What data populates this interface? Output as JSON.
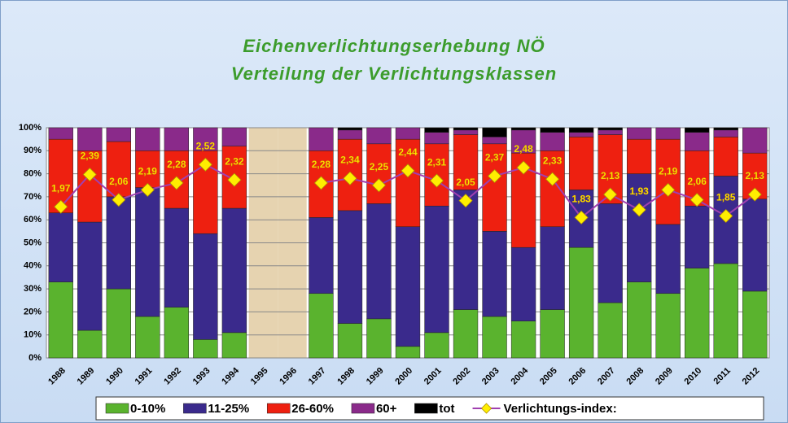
{
  "chart_data": {
    "type": "bar",
    "stacked": true,
    "title": "Eichenverlichtungserhebung NÖ",
    "subtitle": "Verteilung der Verlichtungsklassen",
    "categories": [
      "1988",
      "1989",
      "1990",
      "1991",
      "1992",
      "1993",
      "1994",
      "1995",
      "1996",
      "1997",
      "1998",
      "1999",
      "2000",
      "2001",
      "2002",
      "2003",
      "2004",
      "2005",
      "2006",
      "2007",
      "2008",
      "2009",
      "2010",
      "2011",
      "2012"
    ],
    "ylim": [
      0,
      100
    ],
    "yticks": [
      {
        "value": 0,
        "label": "0%"
      },
      {
        "value": 10,
        "label": "10%"
      },
      {
        "value": 20,
        "label": "20%"
      },
      {
        "value": 30,
        "label": "30%"
      },
      {
        "value": 40,
        "label": "40%"
      },
      {
        "value": 50,
        "label": "50%"
      },
      {
        "value": 60,
        "label": "60%"
      },
      {
        "value": 70,
        "label": "70%"
      },
      {
        "value": 80,
        "label": "80%"
      },
      {
        "value": 90,
        "label": "90%"
      },
      {
        "value": 100,
        "label": "100%"
      }
    ],
    "y2lim": [
      0,
      3
    ],
    "grid": true,
    "legend": "bottom",
    "series": [
      {
        "name": "0-10%",
        "color": "#5ab32e",
        "values": [
          33,
          12,
          30,
          18,
          22,
          8,
          11,
          null,
          null,
          28,
          15,
          17,
          5,
          11,
          21,
          18,
          16,
          21,
          48,
          24,
          33,
          28,
          39,
          41,
          29
        ]
      },
      {
        "name": "11-25%",
        "color": "#3a2a8c",
        "values": [
          30,
          47,
          40,
          56,
          43,
          46,
          54,
          null,
          null,
          33,
          49,
          50,
          52,
          55,
          52,
          37,
          32,
          36,
          25,
          43,
          47,
          30,
          27,
          38,
          40
        ]
      },
      {
        "name": "26-60%",
        "color": "#ee2010",
        "values": [
          32,
          31,
          24,
          16,
          25,
          36,
          27,
          null,
          null,
          29,
          31,
          26,
          38,
          27,
          24,
          38,
          41,
          33,
          23,
          30,
          15,
          37,
          24,
          17,
          20
        ]
      },
      {
        "name": "60+",
        "color": "#8a2a8a",
        "values": [
          5,
          10,
          6,
          10,
          10,
          10,
          8,
          null,
          null,
          10,
          4,
          7,
          5,
          5,
          2,
          3,
          10,
          8,
          2,
          2,
          5,
          5,
          8,
          3,
          11
        ]
      },
      {
        "name": "tot",
        "color": "#000000",
        "values": [
          0,
          0,
          0,
          0,
          0,
          0,
          0,
          null,
          null,
          0,
          1,
          0,
          0,
          2,
          1,
          4,
          1,
          2,
          2,
          1,
          0,
          0,
          2,
          1,
          0
        ]
      },
      {
        "name": "Verlichtungs-index:",
        "color": "#a040b0",
        "marker_color": "#ffee00",
        "type": "line",
        "axis": "y2",
        "values": [
          1.97,
          2.39,
          2.06,
          2.19,
          2.28,
          2.52,
          2.32,
          null,
          null,
          2.28,
          2.34,
          2.25,
          2.44,
          2.31,
          2.05,
          2.37,
          2.48,
          2.33,
          1.83,
          2.13,
          1.93,
          2.19,
          2.06,
          1.85,
          2.13
        ],
        "value_labels": [
          "1,97",
          "2,39",
          "2,06",
          "2,19",
          "2,28",
          "2,52",
          "2,32",
          null,
          null,
          "2,28",
          "2,34",
          "2,25",
          "2,44",
          "2,31",
          "2,05",
          "2,37",
          "2,48",
          "2,33",
          "1,83",
          "2,13",
          "1,93",
          "2,19",
          "2,06",
          "1,85",
          "2,13"
        ]
      }
    ]
  }
}
